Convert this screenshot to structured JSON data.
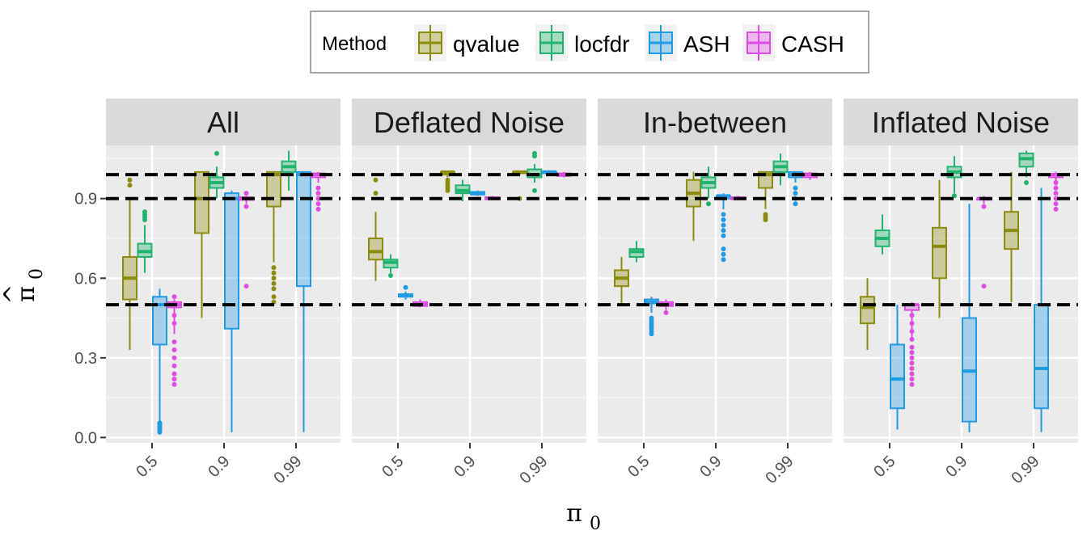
{
  "chart_data": {
    "type": "boxplot",
    "title": "",
    "xlabel_symbol": "π",
    "xlabel_subscript": "0",
    "ylabel_hat": "^",
    "ylabel_symbol": "π",
    "ylabel_subscript": "0",
    "ylim": [
      -0.02,
      1.1
    ],
    "yticks": [
      0.0,
      0.3,
      0.6,
      0.9
    ],
    "ytick_labels": [
      "0.0",
      "0.3",
      "0.6",
      "0.9"
    ],
    "categories": [
      "0.5",
      "0.9",
      "0.99"
    ],
    "reference_lines": [
      0.5,
      0.9,
      0.99
    ],
    "grid": true,
    "legend": {
      "title": "Method",
      "position": "top",
      "entries": [
        "qvalue",
        "locfdr",
        "ASH",
        "CASH"
      ]
    },
    "colors": {
      "qvalue": "#8C8C0A",
      "locfdr": "#1EB46E",
      "ASH": "#1E9BE6",
      "CASH": "#E04BE6",
      "panel_bg": "#EBEBEB",
      "strip_bg": "#D9D9D9"
    },
    "panels": [
      {
        "name": "All",
        "groups": {
          "0.5": {
            "qvalue": {
              "min": 0.33,
              "q1": 0.52,
              "median": 0.6,
              "q3": 0.68,
              "max": 0.9,
              "outliers": [
                0.97,
                0.95
              ]
            },
            "locfdr": {
              "min": 0.62,
              "q1": 0.68,
              "median": 0.7,
              "q3": 0.73,
              "max": 0.8,
              "outliers": [
                0.82,
                0.83,
                0.84,
                0.85
              ]
            },
            "ASH": {
              "min": 0.06,
              "q1": 0.35,
              "median": 0.5,
              "q3": 0.53,
              "max": 0.56,
              "outliers": [
                0.02,
                0.03,
                0.035,
                0.04,
                0.045,
                0.05,
                0.055
              ]
            },
            "CASH": {
              "min": 0.39,
              "q1": 0.49,
              "median": 0.5,
              "q3": 0.51,
              "max": 0.52,
              "outliers": [
                0.2,
                0.22,
                0.24,
                0.27,
                0.3,
                0.33,
                0.36,
                0.43,
                0.46,
                0.53
              ]
            }
          },
          "0.9": {
            "qvalue": {
              "min": 0.45,
              "q1": 0.77,
              "median": 0.9,
              "q3": 1.0,
              "max": 1.0,
              "outliers": []
            },
            "locfdr": {
              "min": 0.9,
              "q1": 0.94,
              "median": 0.96,
              "q3": 0.98,
              "max": 1.02,
              "outliers": [
                1.07
              ]
            },
            "ASH": {
              "min": 0.02,
              "q1": 0.41,
              "median": 0.9,
              "q3": 0.92,
              "max": 0.93,
              "outliers": []
            },
            "CASH": {
              "min": 0.88,
              "q1": 0.895,
              "median": 0.9,
              "q3": 0.905,
              "max": 0.91,
              "outliers": [
                0.57,
                0.87,
                0.92
              ]
            }
          },
          "0.99": {
            "qvalue": {
              "min": 0.66,
              "q1": 0.87,
              "median": 0.99,
              "q3": 1.0,
              "max": 1.0,
              "outliers": [
                0.51,
                0.53,
                0.56,
                0.58,
                0.6,
                0.62,
                0.64
              ]
            },
            "locfdr": {
              "min": 0.93,
              "q1": 1.0,
              "median": 1.02,
              "q3": 1.04,
              "max": 1.08,
              "outliers": []
            },
            "ASH": {
              "min": 0.02,
              "q1": 0.57,
              "median": 0.99,
              "q3": 1.0,
              "max": 1.0,
              "outliers": []
            },
            "CASH": {
              "min": 0.96,
              "q1": 0.98,
              "median": 0.99,
              "q3": 0.995,
              "max": 1.0,
              "outliers": [
                0.86,
                0.88,
                0.9,
                0.92,
                0.94
              ]
            }
          }
        }
      },
      {
        "name": "Deflated Noise",
        "groups": {
          "0.5": {
            "qvalue": {
              "min": 0.59,
              "q1": 0.67,
              "median": 0.7,
              "q3": 0.75,
              "max": 0.85,
              "outliers": [
                0.92,
                0.97
              ]
            },
            "locfdr": {
              "min": 0.62,
              "q1": 0.64,
              "median": 0.66,
              "q3": 0.67,
              "max": 0.69,
              "outliers": [
                0.61
              ]
            },
            "ASH": {
              "min": 0.52,
              "q1": 0.53,
              "median": 0.535,
              "q3": 0.54,
              "max": 0.55,
              "outliers": [
                0.565
              ]
            },
            "CASH": {
              "min": 0.49,
              "q1": 0.495,
              "median": 0.5,
              "q3": 0.51,
              "max": 0.52,
              "outliers": []
            }
          },
          "0.9": {
            "qvalue": {
              "min": 0.98,
              "q1": 0.99,
              "median": 1.0,
              "q3": 1.0,
              "max": 1.0,
              "outliers": [
                0.93,
                0.94,
                0.95,
                0.96,
                0.97
              ]
            },
            "locfdr": {
              "min": 0.89,
              "q1": 0.92,
              "median": 0.93,
              "q3": 0.95,
              "max": 0.97,
              "outliers": []
            },
            "ASH": {
              "min": 0.91,
              "q1": 0.915,
              "median": 0.92,
              "q3": 0.925,
              "max": 0.93,
              "outliers": []
            },
            "CASH": {
              "min": 0.895,
              "q1": 0.898,
              "median": 0.9,
              "q3": 0.905,
              "max": 0.91,
              "outliers": []
            }
          },
          "0.99": {
            "qvalue": {
              "min": 0.99,
              "q1": 1.0,
              "median": 1.0,
              "q3": 1.0,
              "max": 1.0,
              "outliers": [
                0.9
              ]
            },
            "locfdr": {
              "min": 0.96,
              "q1": 0.98,
              "median": 0.99,
              "q3": 1.01,
              "max": 1.03,
              "outliers": [
                0.93,
                1.06,
                1.07
              ]
            },
            "ASH": {
              "min": 0.995,
              "q1": 0.997,
              "median": 1.0,
              "q3": 1.0,
              "max": 1.0,
              "outliers": []
            },
            "CASH": {
              "min": 0.98,
              "q1": 0.985,
              "median": 0.99,
              "q3": 0.995,
              "max": 1.0,
              "outliers": []
            }
          }
        }
      },
      {
        "name": "In-between",
        "groups": {
          "0.5": {
            "qvalue": {
              "min": 0.5,
              "q1": 0.57,
              "median": 0.6,
              "q3": 0.63,
              "max": 0.68,
              "outliers": []
            },
            "locfdr": {
              "min": 0.66,
              "q1": 0.68,
              "median": 0.7,
              "q3": 0.71,
              "max": 0.74,
              "outliers": []
            },
            "ASH": {
              "min": 0.47,
              "q1": 0.505,
              "median": 0.51,
              "q3": 0.52,
              "max": 0.53,
              "outliers": [
                0.39,
                0.4,
                0.41,
                0.42,
                0.43,
                0.44,
                0.45
              ]
            },
            "CASH": {
              "min": 0.48,
              "q1": 0.495,
              "median": 0.5,
              "q3": 0.51,
              "max": 0.52,
              "outliers": [
                0.47
              ]
            }
          },
          "0.9": {
            "qvalue": {
              "min": 0.74,
              "q1": 0.87,
              "median": 0.92,
              "q3": 0.97,
              "max": 1.0,
              "outliers": []
            },
            "locfdr": {
              "min": 0.9,
              "q1": 0.94,
              "median": 0.96,
              "q3": 0.98,
              "max": 1.02,
              "outliers": [
                0.88
              ]
            },
            "ASH": {
              "min": 0.86,
              "q1": 0.9,
              "median": 0.91,
              "q3": 0.91,
              "max": 0.92,
              "outliers": [
                0.67,
                0.69,
                0.71,
                0.76,
                0.78,
                0.8,
                0.82,
                0.84
              ]
            },
            "CASH": {
              "min": 0.895,
              "q1": 0.898,
              "median": 0.9,
              "q3": 0.905,
              "max": 0.91,
              "outliers": []
            }
          },
          "0.99": {
            "qvalue": {
              "min": 0.86,
              "q1": 0.94,
              "median": 0.99,
              "q3": 1.0,
              "max": 1.0,
              "outliers": [
                0.82,
                0.83,
                0.84
              ]
            },
            "locfdr": {
              "min": 0.95,
              "q1": 1.0,
              "median": 1.02,
              "q3": 1.04,
              "max": 1.07,
              "outliers": []
            },
            "ASH": {
              "min": 0.96,
              "q1": 0.98,
              "median": 0.99,
              "q3": 1.0,
              "max": 1.0,
              "outliers": [
                0.88,
                0.9,
                0.92,
                0.94
              ]
            },
            "CASH": {
              "min": 0.97,
              "q1": 0.98,
              "median": 0.99,
              "q3": 0.995,
              "max": 1.0,
              "outliers": []
            }
          }
        }
      },
      {
        "name": "Inflated Noise",
        "groups": {
          "0.5": {
            "qvalue": {
              "min": 0.33,
              "q1": 0.43,
              "median": 0.49,
              "q3": 0.53,
              "max": 0.6,
              "outliers": []
            },
            "locfdr": {
              "min": 0.69,
              "q1": 0.72,
              "median": 0.75,
              "q3": 0.78,
              "max": 0.84,
              "outliers": []
            },
            "ASH": {
              "min": 0.03,
              "q1": 0.11,
              "median": 0.22,
              "q3": 0.35,
              "max": 0.5,
              "outliers": []
            },
            "CASH": {
              "min": 0.37,
              "q1": 0.48,
              "median": 0.5,
              "q3": 0.5,
              "max": 0.51,
              "outliers": [
                0.2,
                0.22,
                0.24,
                0.26,
                0.28,
                0.3,
                0.32,
                0.34,
                0.37,
                0.4,
                0.43,
                0.46
              ]
            }
          },
          "0.9": {
            "qvalue": {
              "min": 0.45,
              "q1": 0.6,
              "median": 0.72,
              "q3": 0.79,
              "max": 0.97,
              "outliers": []
            },
            "locfdr": {
              "min": 0.92,
              "q1": 0.98,
              "median": 1.0,
              "q3": 1.02,
              "max": 1.06,
              "outliers": [
                0.91
              ]
            },
            "ASH": {
              "min": 0.02,
              "q1": 0.06,
              "median": 0.25,
              "q3": 0.45,
              "max": 0.88,
              "outliers": []
            },
            "CASH": {
              "min": 0.88,
              "q1": 0.9,
              "median": 0.9,
              "q3": 0.9,
              "max": 0.91,
              "outliers": [
                0.57,
                0.87
              ]
            }
          },
          "0.99": {
            "qvalue": {
              "min": 0.51,
              "q1": 0.71,
              "median": 0.78,
              "q3": 0.85,
              "max": 1.0,
              "outliers": []
            },
            "locfdr": {
              "min": 0.98,
              "q1": 1.02,
              "median": 1.05,
              "q3": 1.07,
              "max": 1.08,
              "outliers": [
                0.96
              ]
            },
            "ASH": {
              "min": 0.02,
              "q1": 0.11,
              "median": 0.26,
              "q3": 0.5,
              "max": 0.94,
              "outliers": []
            },
            "CASH": {
              "min": 0.95,
              "q1": 0.98,
              "median": 0.99,
              "q3": 0.99,
              "max": 1.0,
              "outliers": [
                0.86,
                0.88,
                0.9,
                0.92,
                0.94,
                0.96
              ]
            }
          }
        }
      }
    ]
  }
}
